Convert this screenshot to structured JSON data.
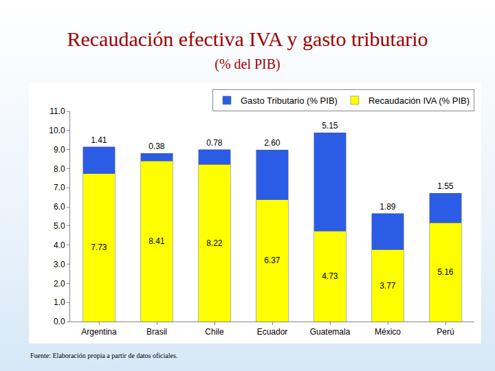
{
  "chart_data": {
    "type": "bar",
    "title": "Recaudación efectiva IVA y gasto tributario",
    "subtitle": "(% del PIB)",
    "source": "Fuente: Elaboración propia a partir de datos oficiales.",
    "categories": [
      "Argentina",
      "Brasil",
      "Chile",
      "Ecuador",
      "Guatemala",
      "México",
      "Perú"
    ],
    "series": [
      {
        "name": "Recaudación IVA (% PIB)",
        "color": "#ffff00",
        "values": [
          7.73,
          8.41,
          8.22,
          6.37,
          4.73,
          3.77,
          5.16
        ],
        "value_labels": [
          "7.73",
          "8.41",
          "8.22",
          "6.37",
          "4.73",
          "3.77",
          "5.16"
        ]
      },
      {
        "name": "Gasto Tributario (% PIB)",
        "color": "#2a5ce6",
        "values": [
          1.41,
          0.38,
          0.78,
          2.6,
          5.15,
          1.89,
          1.55
        ],
        "value_labels": [
          "1.41",
          "0.38",
          "0.78",
          "2.60",
          "5.15",
          "1.89",
          "1.55"
        ]
      }
    ],
    "ylim": [
      0,
      11
    ],
    "yticks": [
      {
        "value": 0,
        "label": "0.0"
      },
      {
        "value": 1,
        "label": "1.0"
      },
      {
        "value": 2,
        "label": "2.0"
      },
      {
        "value": 3,
        "label": "3.0"
      },
      {
        "value": 4,
        "label": "4.0"
      },
      {
        "value": 5,
        "label": "5.0"
      },
      {
        "value": 6,
        "label": "6.0"
      },
      {
        "value": 7,
        "label": "7.0"
      },
      {
        "value": 8,
        "label": "8.0"
      },
      {
        "value": 9,
        "label": "9.0"
      },
      {
        "value": 10,
        "label": "10.0"
      },
      {
        "value": 11,
        "label": "11.0"
      }
    ],
    "stacked": true,
    "data_labels": true,
    "legend": "upper right",
    "grid": false
  }
}
